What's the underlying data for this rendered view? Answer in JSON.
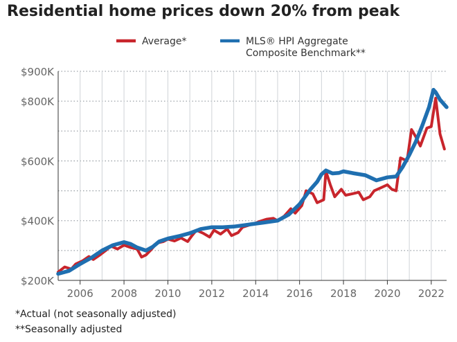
{
  "chart_data": {
    "type": "line",
    "title": "Residential home prices down 20% from peak",
    "xlabel": "",
    "ylabel": "",
    "xlim": [
      2005.0,
      2022.7
    ],
    "ylim": [
      200,
      900
    ],
    "y_ticks": [
      {
        "value": 200,
        "label": "$200K"
      },
      {
        "value": 400,
        "label": "$400K"
      },
      {
        "value": 600,
        "label": "$600K"
      },
      {
        "value": 800,
        "label": "$800K"
      },
      {
        "value": 900,
        "label": "$900K"
      }
    ],
    "y_grid": [
      300,
      500,
      700,
      900
    ],
    "x_ticks": [
      {
        "value": 2006,
        "label": "2006"
      },
      {
        "value": 2008,
        "label": "2008"
      },
      {
        "value": 2010,
        "label": "2010"
      },
      {
        "value": 2012,
        "label": "2012"
      },
      {
        "value": 2014,
        "label": "2014"
      },
      {
        "value": 2016,
        "label": "2016"
      },
      {
        "value": 2018,
        "label": "2018"
      },
      {
        "value": 2020,
        "label": "2020"
      },
      {
        "value": 2022,
        "label": "2022"
      }
    ],
    "series": [
      {
        "name": "Average*",
        "color": "#c8252c",
        "x": [
          2005.0,
          2005.3,
          2005.6,
          2005.8,
          2006.1,
          2006.4,
          2006.6,
          2006.9,
          2007.2,
          2007.4,
          2007.7,
          2008.0,
          2008.3,
          2008.6,
          2008.8,
          2009.0,
          2009.2,
          2009.5,
          2009.8,
          2010.0,
          2010.3,
          2010.6,
          2010.9,
          2011.1,
          2011.3,
          2011.6,
          2011.9,
          2012.1,
          2012.4,
          2012.7,
          2012.9,
          2013.2,
          2013.4,
          2013.7,
          2014.0,
          2014.2,
          2014.5,
          2014.8,
          2015.0,
          2015.3,
          2015.6,
          2015.8,
          2016.1,
          2016.3,
          2016.6,
          2016.8,
          2017.1,
          2017.2,
          2017.4,
          2017.6,
          2017.9,
          2018.1,
          2018.4,
          2018.7,
          2018.9,
          2019.2,
          2019.4,
          2019.7,
          2020.0,
          2020.2,
          2020.4,
          2020.6,
          2020.9,
          2021.1,
          2021.3,
          2021.5,
          2021.8,
          2022.0,
          2022.2,
          2022.4,
          2022.6
        ],
        "values": [
          228,
          245,
          238,
          255,
          265,
          280,
          270,
          285,
          302,
          315,
          305,
          318,
          310,
          305,
          278,
          285,
          300,
          325,
          330,
          338,
          332,
          342,
          330,
          350,
          368,
          358,
          345,
          368,
          355,
          372,
          350,
          360,
          378,
          385,
          392,
          398,
          405,
          408,
          400,
          415,
          440,
          425,
          450,
          500,
          490,
          460,
          470,
          565,
          520,
          480,
          505,
          485,
          490,
          495,
          470,
          480,
          500,
          510,
          520,
          505,
          500,
          610,
          600,
          705,
          680,
          650,
          710,
          715,
          810,
          690,
          640
        ]
      },
      {
        "name": "MLS® HPI Aggregate Composite Benchmark**",
        "color": "#1f6fb0",
        "x": [
          2005.0,
          2005.5,
          2006.0,
          2006.5,
          2007.0,
          2007.5,
          2008.0,
          2008.3,
          2008.6,
          2009.0,
          2009.3,
          2009.6,
          2010.0,
          2010.5,
          2011.0,
          2011.5,
          2012.0,
          2012.5,
          2013.0,
          2013.5,
          2014.0,
          2014.5,
          2015.0,
          2015.5,
          2016.0,
          2016.5,
          2016.8,
          2017.0,
          2017.2,
          2017.5,
          2017.8,
          2018.0,
          2018.5,
          2019.0,
          2019.5,
          2020.0,
          2020.4,
          2020.7,
          2021.0,
          2021.3,
          2021.6,
          2021.9,
          2022.1,
          2022.2,
          2022.4,
          2022.7
        ],
        "values": [
          222,
          232,
          255,
          275,
          300,
          318,
          328,
          322,
          310,
          300,
          312,
          330,
          340,
          348,
          358,
          372,
          378,
          378,
          380,
          385,
          390,
          395,
          400,
          420,
          455,
          505,
          530,
          555,
          568,
          558,
          560,
          565,
          558,
          552,
          535,
          545,
          548,
          580,
          620,
          665,
          720,
          780,
          838,
          830,
          805,
          780
        ]
      }
    ],
    "legend": [
      {
        "label": "Average*",
        "color": "#c8252c"
      },
      {
        "label_line1": "MLS® HPI Aggregate",
        "label_line2": "Composite Benchmark**",
        "color": "#1f6fb0"
      }
    ],
    "footnotes": [
      "*Actual (not seasonally adjusted)",
      "**Seasonally adjusted"
    ],
    "legend_position": "top-center"
  }
}
